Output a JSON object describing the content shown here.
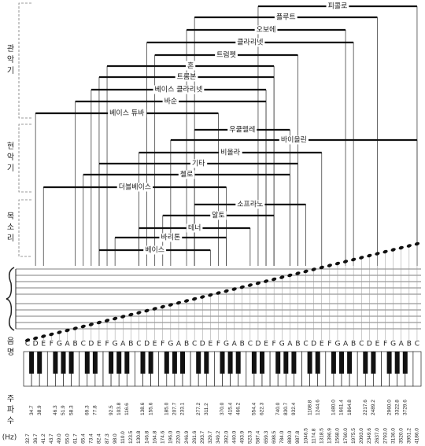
{
  "groups": [
    {
      "label": "관악기",
      "instruments": [
        "피콜로",
        "플루트",
        "오보에",
        "클라리넷",
        "트럼펫",
        "혼",
        "트롬본",
        "베이스 클라리넷",
        "바순",
        "베이스 튜바"
      ]
    },
    {
      "label": "현악기",
      "instruments": [
        "우쿨렐레",
        "바이올린",
        "비올라",
        "기타",
        "첼로",
        "더블베이스"
      ]
    },
    {
      "label": "목소리",
      "instruments": [
        "소프라노",
        "알토",
        "테너",
        "바리톤",
        "베이스"
      ]
    }
  ],
  "labels": {
    "note_name": "음명",
    "frequency": "주파수",
    "unit": "(Hz)"
  },
  "notes": [
    "C",
    "D",
    "E",
    "F",
    "G",
    "A",
    "B",
    "C",
    "D",
    "E",
    "F",
    "G",
    "A",
    "B",
    "C",
    "D",
    "E",
    "F",
    "G",
    "A",
    "B",
    "C",
    "D",
    "E",
    "F",
    "G",
    "A",
    "B",
    "C",
    "D",
    "E",
    "F",
    "G",
    "A",
    "B",
    "C",
    "D",
    "E",
    "F",
    "G",
    "A",
    "B",
    "C",
    "D",
    "E",
    "F",
    "G",
    "A",
    "B",
    "C"
  ],
  "white_frequencies": [
    "32.7",
    "36.7",
    "41.2",
    "43.7",
    "49.0",
    "55.0",
    "61.7",
    "65.4",
    "73.4",
    "82.4",
    "87.3",
    "98.0",
    "110.0",
    "123.5",
    "130.8",
    "146.8",
    "164.8",
    "174.6",
    "196.0",
    "220.0",
    "246.9",
    "261.6",
    "293.7",
    "329.7",
    "349.2",
    "392.0",
    "440.0",
    "493.9",
    "523.3",
    "587.4",
    "659.3",
    "698.5",
    "784.0",
    "880.0",
    "987.8",
    "1046.5",
    "1174.8",
    "1318.5",
    "1396.9",
    "1568.0",
    "1760.0",
    "1975.5",
    "2093.0",
    "2349.6",
    "2637.0",
    "2793.0",
    "3136.0",
    "3520.0",
    "3951.2",
    "4186.0"
  ],
  "black_frequencies": [
    "34.7",
    "38.9",
    "46.3",
    "51.9",
    "58.3",
    "69.3",
    "77.8",
    "92.5",
    "103.8",
    "116.6",
    "138.6",
    "155.6",
    "185.0",
    "207.7",
    "233.1",
    "277.2",
    "311.2",
    "370.0",
    "415.4",
    "466.2",
    "554.4",
    "622.3",
    "740.0",
    "830.7",
    "932.4",
    "1108.8",
    "1244.6",
    "1480.0",
    "1661.4",
    "1864.8",
    "2217.6",
    "2489.2",
    "2960.0",
    "3322.8",
    "3729.6"
  ]
}
